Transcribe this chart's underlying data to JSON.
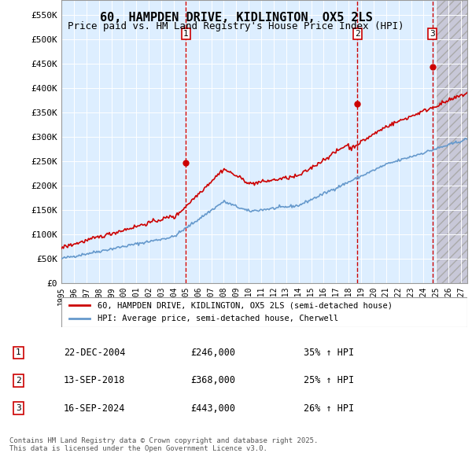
{
  "title_line1": "60, HAMPDEN DRIVE, KIDLINGTON, OX5 2LS",
  "title_line2": "Price paid vs. HM Land Registry's House Price Index (HPI)",
  "ylabel_ticks": [
    "£0",
    "£50K",
    "£100K",
    "£150K",
    "£200K",
    "£250K",
    "£300K",
    "£350K",
    "£400K",
    "£450K",
    "£500K",
    "£550K"
  ],
  "ytick_values": [
    0,
    50000,
    100000,
    150000,
    200000,
    250000,
    300000,
    350000,
    400000,
    450000,
    500000,
    550000
  ],
  "ylim": [
    0,
    580000
  ],
  "xlim_start": 1995.0,
  "xlim_end": 2027.5,
  "sale_color": "#cc0000",
  "hpi_color": "#6699cc",
  "background_chart": "#ddeeff",
  "background_hatch": "#ccccdd",
  "grid_color": "#ffffff",
  "dashed_line_color": "#cc0000",
  "transactions": [
    {
      "label": "1",
      "date": 2004.97,
      "price": 246000,
      "pct": "35%"
    },
    {
      "label": "2",
      "date": 2018.71,
      "price": 368000,
      "pct": "25%"
    },
    {
      "label": "3",
      "date": 2024.71,
      "price": 443000,
      "pct": "26%"
    }
  ],
  "table_rows": [
    {
      "num": "1",
      "date": "22-DEC-2004",
      "price": "£246,000",
      "change": "35% ↑ HPI"
    },
    {
      "num": "2",
      "date": "13-SEP-2018",
      "price": "£368,000",
      "change": "25% ↑ HPI"
    },
    {
      "num": "3",
      "date": "16-SEP-2024",
      "price": "£443,000",
      "change": "26% ↑ HPI"
    }
  ],
  "legend_entries": [
    "60, HAMPDEN DRIVE, KIDLINGTON, OX5 2LS (semi-detached house)",
    "HPI: Average price, semi-detached house, Cherwell"
  ],
  "footnote": "Contains HM Land Registry data © Crown copyright and database right 2025.\nThis data is licensed under the Open Government Licence v3.0."
}
